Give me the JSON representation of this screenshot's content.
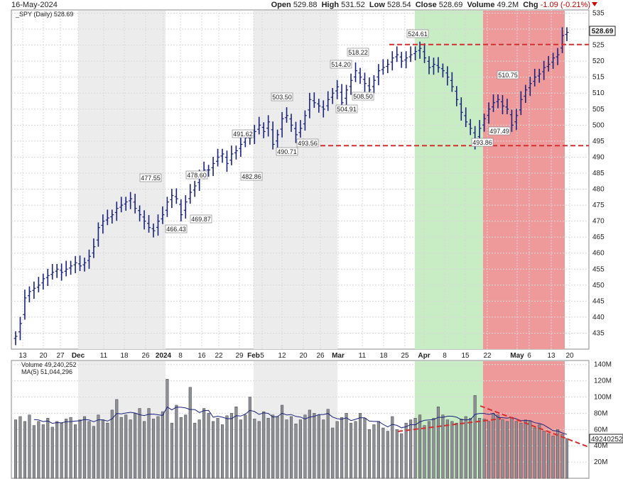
{
  "header": {
    "date": "16-May-2024",
    "open_label": "Open",
    "open": "529.88",
    "high_label": "High",
    "high": "531.52",
    "low_label": "Low",
    "low": "528.54",
    "close_label": "Close",
    "close": "528.69",
    "volume_label": "Volume",
    "volume": "49.2M",
    "chg_label": "Chg",
    "chg": "-1.09 (-0.21%)"
  },
  "price_panel": {
    "legend": "_SPY (Daily) 528.69",
    "last_price": "528.69",
    "colors": {
      "bars": "#1a237e",
      "green_zone": "#c8ecc4",
      "red_zone": "#ef9a9a",
      "trendline": "#d32f2f"
    }
  },
  "volume_panel": {
    "legend_volume": "Volume 49,240,252",
    "legend_ma": "MA(5) 51,044,296",
    "last_volume": "49240252"
  },
  "chart_data": [
    {
      "type": "ohlc",
      "title": "_SPY (Daily) 528.69",
      "y_ticks": [
        435,
        440,
        445,
        450,
        455,
        460,
        465,
        470,
        475,
        480,
        485,
        490,
        495,
        500,
        505,
        510,
        515,
        520,
        525,
        530,
        535
      ],
      "ylim": [
        430,
        536
      ],
      "x_tick_labels": [
        "13",
        "20",
        "27",
        "Dec",
        "11",
        "18",
        "26",
        "2024",
        "8",
        "16",
        "22",
        "29",
        "Feb",
        "5",
        "12",
        "20",
        "26",
        "Mar",
        "11",
        "18",
        "25",
        "Apr",
        "8",
        "15",
        "22",
        "May",
        "6",
        "13",
        "20"
      ],
      "close_series": [
        434,
        438,
        446,
        448,
        449,
        450,
        452,
        453,
        454,
        455,
        454,
        455,
        456,
        457,
        456,
        457,
        459,
        462,
        468,
        470,
        471,
        472,
        474,
        475,
        476,
        477,
        474,
        472,
        470,
        468,
        467,
        470,
        472,
        476,
        478,
        477,
        472,
        476,
        479,
        481,
        484,
        486,
        486,
        488,
        490,
        491,
        488,
        491,
        492,
        494,
        496,
        496,
        498,
        500,
        498,
        501,
        494,
        497,
        502,
        503,
        500,
        497,
        499,
        503,
        508,
        507,
        506,
        505,
        508,
        510,
        512,
        507,
        511,
        514,
        517,
        515,
        513,
        511,
        514,
        517,
        518,
        519,
        521,
        522,
        520,
        521,
        522,
        523,
        524,
        521,
        518,
        519,
        518,
        517,
        515,
        512,
        508,
        504,
        501,
        499,
        495,
        499,
        502,
        505,
        507,
        508,
        506,
        505,
        500,
        503,
        508,
        511,
        513,
        515,
        516,
        518,
        519,
        521,
        522,
        528,
        529
      ],
      "labels": [
        {
          "text": "477.55"
        },
        {
          "text": "466.43"
        },
        {
          "text": "478.60"
        },
        {
          "text": "469.87"
        },
        {
          "text": "491.62"
        },
        {
          "text": "482.86"
        },
        {
          "text": "503.50"
        },
        {
          "text": "490.71"
        },
        {
          "text": "493.56"
        },
        {
          "text": "514.20"
        },
        {
          "text": "504.91"
        },
        {
          "text": "518.22"
        },
        {
          "text": "508.50"
        },
        {
          "text": "524.61"
        },
        {
          "text": "510.75"
        },
        {
          "text": "497.49"
        },
        {
          "text": "493.86"
        }
      ],
      "horizontal_lines": [
        {
          "value": 525.2
        },
        {
          "value": 493.6
        }
      ],
      "zones": [
        {
          "color": "green",
          "from": "Mar 28",
          "to": "Apr 19"
        },
        {
          "color": "red",
          "from": "Apr 19",
          "to": "May 17"
        }
      ]
    },
    {
      "type": "bar",
      "title": "Volume 49,240,252",
      "y_ticks": [
        "20M",
        "40M",
        "60M",
        "80M",
        "100M",
        "120M",
        "140M"
      ],
      "ylim": [
        0,
        145
      ],
      "series": [
        {
          "name": "Volume",
          "values": [
            72,
            76,
            70,
            78,
            65,
            70,
            66,
            74,
            63,
            70,
            68,
            73,
            75,
            66,
            72,
            76,
            70,
            64,
            78,
            72,
            68,
            84,
            97,
            75,
            78,
            72,
            80,
            86,
            70,
            86,
            73,
            76,
            82,
            122,
            68,
            90,
            75,
            78,
            112,
            68,
            72,
            86,
            80,
            70,
            74,
            66,
            77,
            80,
            88,
            72,
            78,
            100,
            73,
            70,
            82,
            74,
            78,
            76,
            90,
            72,
            76,
            67,
            72,
            78,
            84,
            80,
            78,
            72,
            85,
            62,
            70,
            75,
            80,
            68,
            70,
            80,
            74,
            60,
            66,
            70,
            62,
            58,
            76,
            60,
            55,
            68,
            72,
            74,
            78,
            65,
            70,
            74,
            88,
            78,
            72,
            70,
            68,
            73,
            76,
            74,
            102,
            74,
            73,
            70,
            80,
            78,
            72,
            70,
            75,
            70,
            68,
            72,
            70,
            62,
            66,
            58,
            55,
            52,
            60,
            54,
            49
          ]
        },
        {
          "name": "MA(5)",
          "values": []
        }
      ],
      "trendlines": [
        "rising dashed red (late Mar - Apr 19)",
        "falling dashed red (Apr 19 - May)"
      ]
    }
  ]
}
